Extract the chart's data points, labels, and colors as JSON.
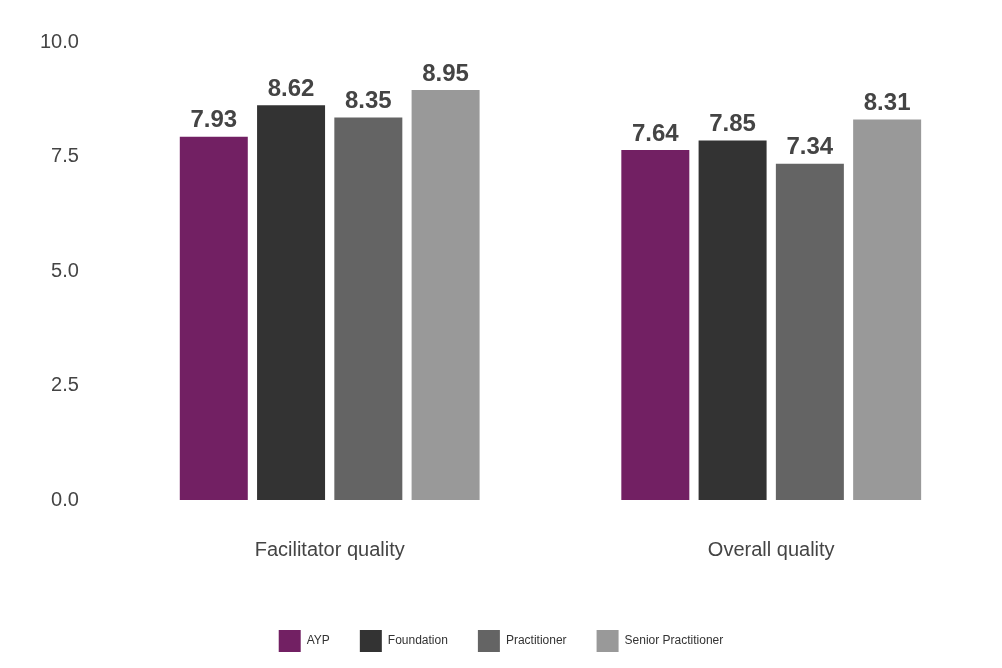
{
  "chart_data": {
    "type": "bar",
    "categories": [
      "Facilitator quality",
      "Overall quality"
    ],
    "series": [
      {
        "name": "AYP",
        "color": "#722063",
        "values": [
          7.93,
          7.64
        ]
      },
      {
        "name": "Foundation",
        "color": "#333333",
        "values": [
          8.62,
          7.85
        ]
      },
      {
        "name": "Practitioner",
        "color": "#646464",
        "values": [
          8.35,
          7.34
        ]
      },
      {
        "name": "Senior Practitioner",
        "color": "#999999",
        "values": [
          8.95,
          8.31
        ]
      }
    ],
    "ylim": [
      0,
      10
    ],
    "yticks": [
      {
        "value": 0,
        "label": "0.0"
      },
      2.5,
      {
        "value": 5,
        "label": "5.0"
      },
      7.5,
      {
        "value": 10,
        "label": "10.0"
      }
    ],
    "grid": false,
    "legend": "bottom",
    "data_labels": true
  }
}
